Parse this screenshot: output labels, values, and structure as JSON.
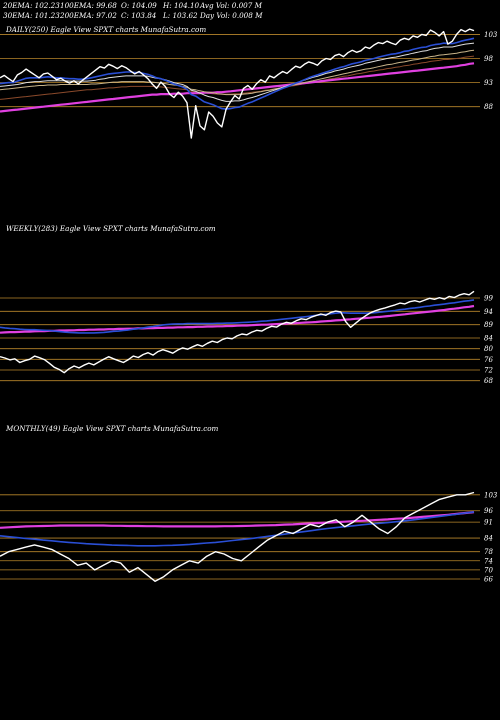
{
  "header": {
    "row1": [
      "20EMA: 102.23",
      "100EMA: 99.68",
      "O: 104.09",
      "H: 104.10",
      "Avg Vol: 0.007 M"
    ],
    "row2": [
      "30EMA: 101.23",
      "200EMA: 97.02",
      "C: 103.84",
      "L: 103.62",
      "Day Vol: 0.008 M"
    ]
  },
  "colors": {
    "background": "#000000",
    "price": "#ffffff",
    "level_line": "#b8862b",
    "ema20": "#2a4fd6",
    "ema_white": "#dddddd",
    "ema_tan": "#c8b48a",
    "ema200": "#e040e0",
    "ema_brown": "#8b4a2b"
  },
  "chart_data": [
    {
      "type": "line",
      "label": "DAILY(250) Eagle  View  SPXT charts MunafaSutra.com",
      "levels": [
        103,
        98,
        93,
        88
      ],
      "ylim": [
        79,
        106
      ],
      "price": [
        94,
        94.5,
        93.8,
        93.2,
        94.6,
        95.1,
        95.8,
        95.2,
        94.6,
        94.0,
        94.8,
        95.0,
        94.3,
        93.6,
        93.9,
        93.3,
        92.9,
        93.4,
        92.7,
        93.5,
        94.2,
        94.9,
        95.6,
        96.3,
        96.0,
        96.8,
        96.4,
        95.9,
        96.5,
        96.1,
        95.4,
        94.8,
        95.3,
        94.6,
        93.8,
        92.7,
        91.8,
        93.1,
        92.2,
        90.6,
        89.9,
        91.0,
        90.2,
        88.8,
        81.5,
        88.2,
        84.0,
        83.2,
        86.9,
        86.0,
        84.6,
        83.8,
        87.5,
        89.0,
        90.3,
        89.6,
        91.8,
        92.4,
        91.6,
        92.8,
        93.6,
        93.1,
        94.4,
        94.0,
        94.7,
        95.3,
        94.9,
        95.7,
        96.4,
        96.1,
        96.8,
        97.3,
        97.0,
        96.6,
        97.5,
        98.0,
        97.8,
        98.6,
        98.9,
        98.4,
        99.2,
        99.7,
        99.3,
        99.6,
        100.4,
        100.1,
        100.8,
        101.3,
        101.1,
        101.6,
        101.2,
        100.9,
        101.8,
        102.2,
        101.9,
        102.7,
        102.4,
        103.0,
        102.8,
        103.9,
        103.4,
        102.7,
        103.6,
        101.0,
        101.6,
        103.0,
        104.0,
        103.6,
        104.1,
        103.8
      ],
      "ema20": [
        92.8,
        92.9,
        93.0,
        93.0,
        93.3,
        93.6,
        93.9,
        94.0,
        94.0,
        94.0,
        94.1,
        94.2,
        94.1,
        94.0,
        94.0,
        93.9,
        93.8,
        93.8,
        93.7,
        93.7,
        93.8,
        94.0,
        94.2,
        94.4,
        94.6,
        94.8,
        94.9,
        95.0,
        95.1,
        95.2,
        95.2,
        95.1,
        95.1,
        94.9,
        94.7,
        94.4,
        94.0,
        93.8,
        93.5,
        93.1,
        92.7,
        92.4,
        92.1,
        91.6,
        90.5,
        90.2,
        89.6,
        89.0,
        88.7,
        88.4,
        88.0,
        87.6,
        87.5,
        87.6,
        87.8,
        87.9,
        88.3,
        88.7,
        89.0,
        89.4,
        89.8,
        90.2,
        90.6,
        91.0,
        91.4,
        91.8,
        92.1,
        92.5,
        92.9,
        93.2,
        93.6,
        94.0,
        94.3,
        94.6,
        94.9,
        95.2,
        95.5,
        95.8,
        96.1,
        96.3,
        96.6,
        96.9,
        97.1,
        97.3,
        97.6,
        97.8,
        98.0,
        98.3,
        98.5,
        98.7,
        98.9,
        99.0,
        99.2,
        99.5,
        99.6,
        99.9,
        100.1,
        100.3,
        100.4,
        100.7,
        100.9,
        101.0,
        101.2,
        101.1,
        101.1,
        101.3,
        101.6,
        101.8,
        102.0,
        102.2
      ],
      "ema_white": [
        92.2,
        92.3,
        92.4,
        92.5,
        92.6,
        92.8,
        93.0,
        93.1,
        93.2,
        93.2,
        93.3,
        93.4,
        93.4,
        93.4,
        93.4,
        93.4,
        93.3,
        93.3,
        93.3,
        93.3,
        93.3,
        93.4,
        93.5,
        93.7,
        93.8,
        94.0,
        94.1,
        94.2,
        94.3,
        94.4,
        94.4,
        94.4,
        94.4,
        94.4,
        94.3,
        94.1,
        93.9,
        93.8,
        93.6,
        93.3,
        93.0,
        92.8,
        92.6,
        92.2,
        91.4,
        91.2,
        90.8,
        90.4,
        90.1,
        89.9,
        89.6,
        89.3,
        89.1,
        89.1,
        89.2,
        89.2,
        89.4,
        89.7,
        89.9,
        90.2,
        90.5,
        90.8,
        91.1,
        91.4,
        91.7,
        92.0,
        92.3,
        92.6,
        92.9,
        93.2,
        93.5,
        93.8,
        94.1,
        94.3,
        94.6,
        94.9,
        95.1,
        95.4,
        95.6,
        95.8,
        96.1,
        96.3,
        96.5,
        96.7,
        97.0,
        97.2,
        97.4,
        97.6,
        97.8,
        98.0,
        98.2,
        98.3,
        98.5,
        98.7,
        98.9,
        99.1,
        99.3,
        99.5,
        99.6,
        99.9,
        100.1,
        100.2,
        100.4,
        100.4,
        100.4,
        100.6,
        100.8,
        101.0,
        101.1,
        101.2
      ],
      "ema_tan": [
        91.5,
        91.6,
        91.7,
        91.8,
        91.9,
        92.0,
        92.1,
        92.2,
        92.3,
        92.4,
        92.4,
        92.5,
        92.5,
        92.5,
        92.6,
        92.6,
        92.6,
        92.6,
        92.6,
        92.6,
        92.6,
        92.7,
        92.7,
        92.8,
        92.9,
        93.0,
        93.1,
        93.1,
        93.2,
        93.2,
        93.2,
        93.2,
        93.2,
        93.2,
        93.1,
        93.1,
        93.0,
        92.9,
        92.8,
        92.6,
        92.5,
        92.4,
        92.2,
        92.0,
        91.6,
        91.5,
        91.3,
        91.1,
        91.0,
        90.9,
        90.7,
        90.6,
        90.5,
        90.5,
        90.5,
        90.5,
        90.6,
        90.7,
        90.8,
        91.0,
        91.1,
        91.3,
        91.4,
        91.6,
        91.8,
        92.0,
        92.2,
        92.4,
        92.6,
        92.8,
        93.0,
        93.2,
        93.4,
        93.6,
        93.8,
        94.0,
        94.2,
        94.4,
        94.6,
        94.8,
        95.0,
        95.2,
        95.4,
        95.6,
        95.8,
        95.9,
        96.1,
        96.3,
        96.5,
        96.7,
        96.8,
        97.0,
        97.2,
        97.3,
        97.5,
        97.7,
        97.8,
        98.0,
        98.2,
        98.4,
        98.5,
        98.7,
        98.8,
        98.9,
        99.0,
        99.1,
        99.3,
        99.4,
        99.6,
        99.7
      ],
      "ema200": [
        87.0,
        87.1,
        87.2,
        87.3,
        87.4,
        87.5,
        87.6,
        87.7,
        87.8,
        87.9,
        88.0,
        88.1,
        88.2,
        88.3,
        88.4,
        88.5,
        88.6,
        88.7,
        88.8,
        88.9,
        89.0,
        89.1,
        89.2,
        89.3,
        89.4,
        89.5,
        89.6,
        89.7,
        89.8,
        89.9,
        90.0,
        90.1,
        90.2,
        90.3,
        90.4,
        90.5,
        90.5,
        90.6,
        90.6,
        90.6,
        90.7,
        90.7,
        90.7,
        90.8,
        90.8,
        90.8,
        90.8,
        90.9,
        90.9,
        90.9,
        91.0,
        91.0,
        91.1,
        91.2,
        91.3,
        91.4,
        91.5,
        91.6,
        91.7,
        91.8,
        91.9,
        92.0,
        92.1,
        92.2,
        92.3,
        92.4,
        92.5,
        92.6,
        92.7,
        92.8,
        92.9,
        93.0,
        93.1,
        93.2,
        93.3,
        93.4,
        93.5,
        93.6,
        93.7,
        93.8,
        93.9,
        94.0,
        94.1,
        94.2,
        94.3,
        94.4,
        94.5,
        94.6,
        94.7,
        94.8,
        94.9,
        95.0,
        95.1,
        95.2,
        95.3,
        95.4,
        95.5,
        95.6,
        95.7,
        95.8,
        95.9,
        96.0,
        96.1,
        96.2,
        96.3,
        96.4,
        96.6,
        96.7,
        96.9,
        97.0
      ],
      "ema_brown": [
        89.5,
        89.6,
        89.7,
        89.8,
        89.9,
        90.0,
        90.1,
        90.2,
        90.3,
        90.4,
        90.5,
        90.6,
        90.7,
        90.8,
        90.9,
        91.0,
        91.1,
        91.2,
        91.3,
        91.4,
        91.5,
        91.5,
        91.6,
        91.7,
        91.8,
        91.9,
        91.9,
        92.0,
        92.1,
        92.1,
        92.2,
        92.2,
        92.2,
        92.2,
        92.2,
        92.2,
        92.1,
        92.1,
        92.0,
        91.9,
        91.8,
        91.7,
        91.6,
        91.5,
        91.2,
        91.1,
        91.0,
        90.9,
        90.8,
        90.7,
        90.6,
        90.6,
        90.6,
        90.6,
        90.7,
        90.7,
        90.8,
        90.9,
        91.0,
        91.1,
        91.2,
        91.4,
        91.5,
        91.7,
        91.8,
        92.0,
        92.1,
        92.3,
        92.4,
        92.6,
        92.8,
        92.9,
        93.1,
        93.3,
        93.4,
        93.6,
        93.8,
        93.9,
        94.1,
        94.3,
        94.4,
        94.6,
        94.8,
        94.9,
        95.1,
        95.3,
        95.4,
        95.6,
        95.7,
        95.9,
        96.0,
        96.2,
        96.3,
        96.5,
        96.6,
        96.8,
        96.9,
        97.1,
        97.2,
        97.4,
        97.5,
        97.6,
        97.8,
        97.8,
        97.9,
        98.0,
        98.1,
        98.3,
        98.4,
        98.5
      ]
    },
    {
      "type": "line",
      "label": "WEEKLY(283) Eagle  View  SPXT charts MunafaSutra.com",
      "levels": [
        99,
        94,
        89,
        84,
        80,
        76,
        72,
        68
      ],
      "ylim": [
        60,
        102
      ],
      "price": [
        77.0,
        76.5,
        75.8,
        76.2,
        74.8,
        75.5,
        76.0,
        77.2,
        76.6,
        75.9,
        74.5,
        73.0,
        72.2,
        71.0,
        72.5,
        73.5,
        72.8,
        73.8,
        74.6,
        73.9,
        75.0,
        76.0,
        77.0,
        76.2,
        75.5,
        74.8,
        75.9,
        77.2,
        76.7,
        77.8,
        78.5,
        77.6,
        78.9,
        79.6,
        79.0,
        78.3,
        79.5,
        80.3,
        79.8,
        80.7,
        81.5,
        80.9,
        82.0,
        82.8,
        82.3,
        83.4,
        84.0,
        83.7,
        84.8,
        85.5,
        85.2,
        86.2,
        86.9,
        86.6,
        87.6,
        88.4,
        88.1,
        89.2,
        89.9,
        89.5,
        90.5,
        91.2,
        90.9,
        91.8,
        92.4,
        93.0,
        92.5,
        93.6,
        94.1,
        93.8,
        90.2,
        88.0,
        89.5,
        91.0,
        92.3,
        93.4,
        94.2,
        94.8,
        95.3,
        95.9,
        96.4,
        97.1,
        96.8,
        97.6,
        98.0,
        97.5,
        98.2,
        98.9,
        98.5,
        99.1,
        98.6,
        99.6,
        99.2,
        100.1,
        100.6,
        100.2,
        101.5
      ],
      "ema20": [
        88.0,
        87.8,
        87.6,
        87.5,
        87.3,
        87.2,
        87.1,
        87.1,
        87.0,
        86.9,
        86.8,
        86.6,
        86.4,
        86.2,
        86.1,
        86.0,
        85.9,
        85.9,
        85.9,
        85.9,
        86.0,
        86.1,
        86.3,
        86.5,
        86.6,
        86.8,
        87.0,
        87.3,
        87.5,
        87.8,
        88.1,
        88.3,
        88.6,
        88.9,
        89.1,
        89.2,
        89.3,
        89.3,
        89.4,
        89.4,
        89.4,
        89.4,
        89.4,
        89.4,
        89.5,
        89.5,
        89.6,
        89.6,
        89.7,
        89.8,
        89.9,
        90.0,
        90.1,
        90.3,
        90.4,
        90.6,
        90.8,
        91.0,
        91.2,
        91.4,
        91.6,
        91.8,
        92.0,
        92.2,
        92.5,
        92.7,
        92.9,
        93.1,
        93.3,
        93.5,
        93.4,
        93.3,
        93.3,
        93.3,
        93.3,
        93.4,
        93.5,
        93.7,
        93.9,
        94.1,
        94.3,
        94.6,
        94.8,
        95.1,
        95.3,
        95.5,
        95.8,
        96.0,
        96.3,
        96.5,
        96.7,
        97.0,
        97.2,
        97.5,
        97.8,
        98.0,
        98.3
      ],
      "ema200": [
        86.0,
        86.1,
        86.2,
        86.2,
        86.3,
        86.4,
        86.4,
        86.5,
        86.6,
        86.6,
        86.7,
        86.7,
        86.8,
        86.8,
        86.9,
        86.9,
        87.0,
        87.0,
        87.1,
        87.1,
        87.2,
        87.2,
        87.3,
        87.3,
        87.4,
        87.4,
        87.5,
        87.5,
        87.6,
        87.6,
        87.7,
        87.7,
        87.8,
        87.8,
        87.9,
        87.9,
        88.0,
        88.0,
        88.1,
        88.1,
        88.2,
        88.2,
        88.3,
        88.3,
        88.4,
        88.4,
        88.5,
        88.5,
        88.6,
        88.7,
        88.7,
        88.8,
        88.9,
        89.0,
        89.0,
        89.1,
        89.2,
        89.3,
        89.4,
        89.5,
        89.6,
        89.7,
        89.8,
        89.9,
        90.0,
        90.2,
        90.3,
        90.4,
        90.6,
        90.7,
        90.9,
        91.0,
        91.2,
        91.3,
        91.5,
        91.6,
        91.8,
        91.9,
        92.1,
        92.3,
        92.5,
        92.7,
        92.9,
        93.1,
        93.3,
        93.5,
        93.7,
        93.9,
        94.1,
        94.3,
        94.5,
        94.8,
        95.0,
        95.2,
        95.5,
        95.7,
        96.0
      ]
    },
    {
      "type": "line",
      "label": "MONTHLY(49) Eagle  View  SPXT charts MunafaSutra.com",
      "levels": [
        103,
        96,
        91,
        84,
        78,
        74,
        70,
        66
      ],
      "ylim": [
        55,
        106
      ],
      "price": [
        76,
        78,
        79,
        80,
        81,
        80,
        79,
        77,
        75,
        72,
        73,
        70,
        72,
        74,
        73,
        69,
        71,
        68,
        65,
        67,
        70,
        72,
        74,
        73,
        76,
        78,
        77,
        75,
        74,
        77,
        80,
        83,
        85,
        87,
        86,
        88,
        90,
        89,
        91,
        92,
        89,
        91,
        94,
        91,
        88,
        86,
        89,
        93,
        95,
        97,
        99,
        101,
        102,
        103,
        103,
        104
      ],
      "ema20": [
        85,
        84.6,
        84.2,
        83.8,
        83.5,
        83.1,
        82.8,
        82.4,
        82.1,
        81.8,
        81.5,
        81.3,
        81.1,
        80.9,
        80.8,
        80.7,
        80.6,
        80.6,
        80.6,
        80.7,
        80.8,
        81.0,
        81.2,
        81.5,
        81.8,
        82.1,
        82.5,
        82.9,
        83.3,
        83.7,
        84.2,
        84.7,
        85.2,
        85.7,
        86.2,
        86.7,
        87.2,
        87.7,
        88.2,
        88.6,
        89.0,
        89.4,
        89.8,
        90.2,
        90.5,
        90.8,
        91.2,
        91.6,
        92.0,
        92.5,
        93.0,
        93.5,
        94.0,
        94.5,
        95.0,
        95.5
      ],
      "ema200": [
        88.5,
        88.7,
        88.9,
        89.1,
        89.2,
        89.3,
        89.4,
        89.5,
        89.5,
        89.5,
        89.5,
        89.5,
        89.5,
        89.4,
        89.4,
        89.3,
        89.3,
        89.2,
        89.2,
        89.1,
        89.1,
        89.1,
        89.1,
        89.1,
        89.1,
        89.1,
        89.2,
        89.2,
        89.3,
        89.4,
        89.5,
        89.6,
        89.7,
        89.9,
        90.0,
        90.2,
        90.4,
        90.6,
        90.8,
        91.0,
        91.2,
        91.4,
        91.6,
        91.8,
        92.0,
        92.2,
        92.5,
        92.7,
        93.0,
        93.3,
        93.6,
        93.9,
        94.2,
        94.6,
        95.0,
        95.4
      ]
    }
  ]
}
